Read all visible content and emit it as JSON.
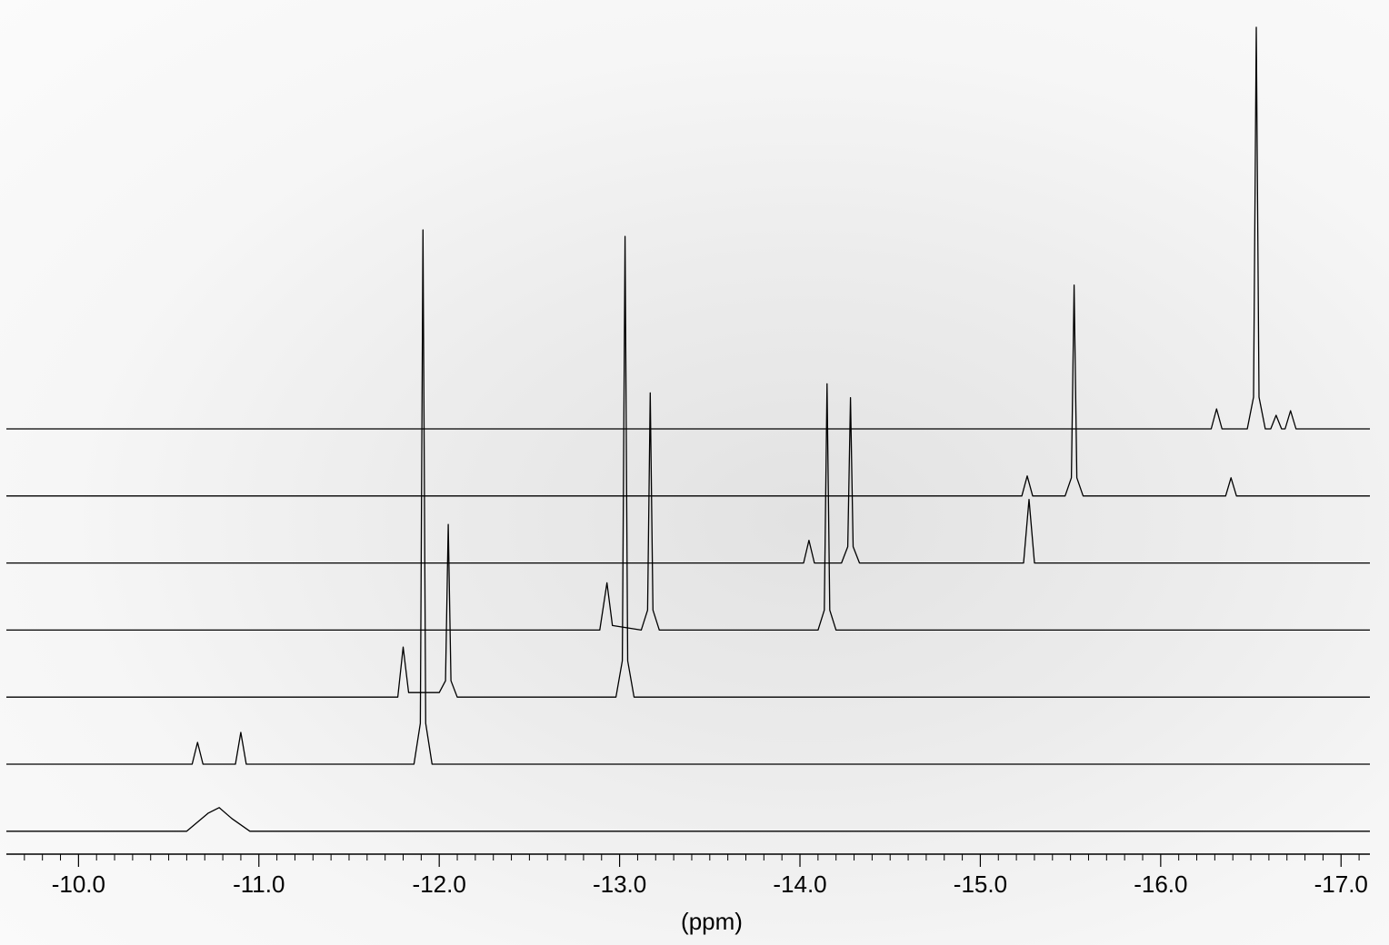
{
  "chart_data": {
    "type": "stacked-spectra",
    "x_label": "(ppm)",
    "xlim": [
      -9.6,
      -17.16
    ],
    "xticks": [
      {
        "value": -10,
        "label": "-10.0"
      },
      {
        "value": -11,
        "label": "-11.0"
      },
      {
        "value": -12,
        "label": "-12.0"
      },
      {
        "value": -13,
        "label": "-13.0"
      },
      {
        "value": -14,
        "label": "-14.0"
      },
      {
        "value": -15,
        "label": "-15.0"
      },
      {
        "value": -16,
        "label": "-16.0"
      },
      {
        "value": -17,
        "label": "-17.0"
      }
    ],
    "minor_xticks": [
      -9.7,
      -9.8,
      -9.9,
      -10.1,
      -10.2,
      -10.3,
      -10.4,
      -10.5,
      -10.6,
      -10.7,
      -10.8,
      -10.9,
      -11.1,
      -11.2,
      -11.3,
      -11.4,
      -11.5,
      -11.6,
      -11.7,
      -11.8,
      -11.9,
      -12.1,
      -12.2,
      -12.3,
      -12.4,
      -12.5,
      -12.6,
      -12.7,
      -12.8,
      -12.9,
      -13.1,
      -13.2,
      -13.3,
      -13.4,
      -13.5,
      -13.6,
      -13.7,
      -13.8,
      -13.9,
      -14.1,
      -14.2,
      -14.3,
      -14.4,
      -14.5,
      -14.6,
      -14.7,
      -14.8,
      -14.9,
      -15.1,
      -15.2,
      -15.3,
      -15.4,
      -15.5,
      -15.6,
      -15.7,
      -15.8,
      -15.9,
      -16.1,
      -16.2,
      -16.3,
      -16.4,
      -16.5,
      -16.6,
      -16.7,
      -16.8,
      -16.9,
      -17.1
    ],
    "line_color": "#000000",
    "series": [
      {
        "x": [
          -9.6,
          -16.28,
          -16.31,
          -16.34,
          -16.48,
          -16.515,
          -16.53,
          -16.545,
          -16.58,
          -16.61,
          -16.64,
          -16.67,
          -16.69,
          -16.72,
          -16.75,
          -17.16
        ],
        "values": [
          0,
          0,
          22,
          0,
          0,
          35,
          442,
          35,
          0,
          0,
          15,
          0,
          0,
          20,
          0,
          0
        ]
      },
      {
        "x": [
          -9.6,
          -15.23,
          -15.26,
          -15.29,
          -15.47,
          -15.505,
          -15.52,
          -15.535,
          -15.57,
          -16.36,
          -16.39,
          -16.42,
          -17.16
        ],
        "values": [
          0,
          0,
          22,
          0,
          0,
          20,
          232,
          20,
          0,
          0,
          20,
          0,
          0
        ]
      },
      {
        "x": [
          -9.6,
          -14.02,
          -14.05,
          -14.08,
          -14.23,
          -14.265,
          -14.28,
          -14.295,
          -14.33,
          -15.24,
          -15.27,
          -15.3,
          -17.16
        ],
        "values": [
          0,
          0,
          25,
          0,
          0,
          18,
          182,
          18,
          0,
          0,
          70,
          0,
          0
        ]
      },
      {
        "x": [
          -9.6,
          -12.89,
          -12.93,
          -12.96,
          -13.12,
          -13.155,
          -13.17,
          -13.185,
          -13.22,
          -14.1,
          -14.135,
          -14.15,
          -14.165,
          -14.2,
          -17.16
        ],
        "values": [
          0,
          0,
          52,
          5,
          0,
          22,
          261,
          22,
          0,
          0,
          22,
          271,
          22,
          0,
          0
        ]
      },
      {
        "x": [
          -9.6,
          -11.77,
          -11.8,
          -11.83,
          -12.0,
          -12.035,
          -12.05,
          -12.065,
          -12.1,
          -12.98,
          -13.015,
          -13.03,
          -13.045,
          -13.08,
          -17.16
        ],
        "values": [
          0,
          0,
          55,
          5,
          5,
          18,
          190,
          18,
          0,
          0,
          40,
          507,
          40,
          0,
          0
        ]
      },
      {
        "x": [
          -9.6,
          -10.63,
          -10.66,
          -10.69,
          -10.87,
          -10.9,
          -10.93,
          -11.86,
          -11.895,
          -11.91,
          -11.925,
          -11.96,
          -17.16
        ],
        "values": [
          0,
          0,
          24,
          0,
          0,
          35,
          0,
          0,
          45,
          588,
          45,
          0,
          0
        ]
      },
      {
        "x": [
          -9.6,
          -10.6,
          -10.72,
          -10.78,
          -10.85,
          -10.95,
          -17.16
        ],
        "values": [
          0,
          0,
          20,
          26,
          14,
          0,
          0
        ]
      }
    ]
  }
}
